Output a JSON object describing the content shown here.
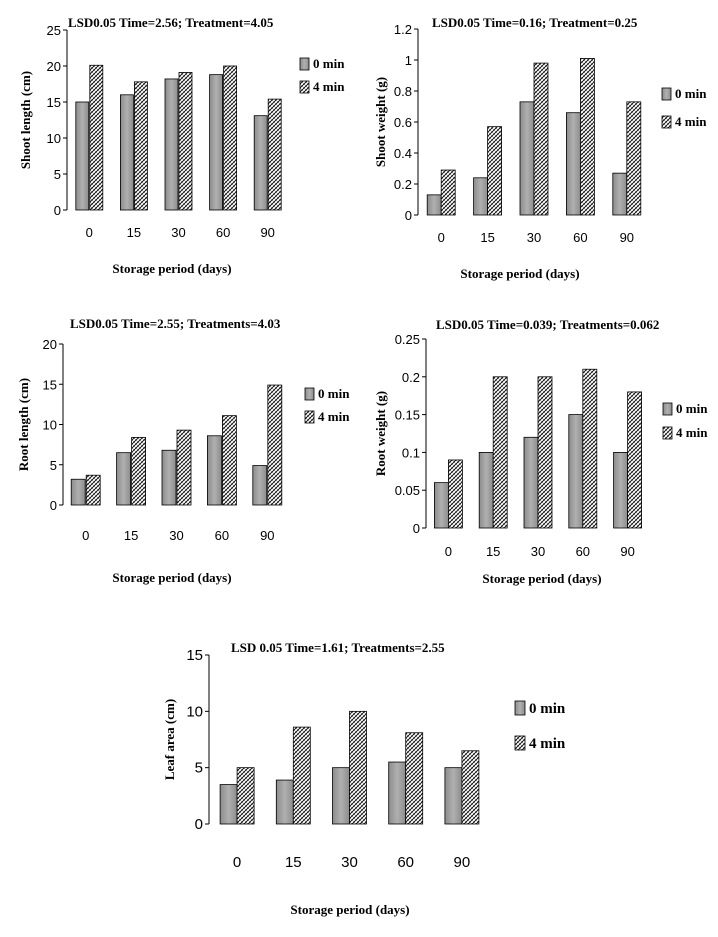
{
  "chart_data": [
    {
      "type": "bar",
      "title": "LSD0.05 Time=2.56; Treatment=4.05",
      "xlabel": "Storage period (days)",
      "ylabel": "Shoot length (cm)",
      "categories": [
        "0",
        "15",
        "30",
        "60",
        "90"
      ],
      "ylim": [
        0,
        25
      ],
      "yticks": [
        "0",
        "5",
        "10",
        "15",
        "20",
        "25"
      ],
      "series": [
        {
          "name": "0 min",
          "values": [
            15.0,
            16.0,
            18.2,
            18.8,
            13.1
          ]
        },
        {
          "name": "4 min",
          "values": [
            20.1,
            17.8,
            19.1,
            20.0,
            15.4
          ]
        }
      ],
      "legend": "right"
    },
    {
      "type": "bar",
      "title": "LSD0.05 Time=0.16; Treatment=0.25",
      "xlabel": "Storage period (days)",
      "ylabel": "Shoot weight (g)",
      "categories": [
        "0",
        "15",
        "30",
        "60",
        "90"
      ],
      "ylim": [
        0,
        1.2
      ],
      "yticks": [
        "0",
        "0.2",
        "0.4",
        "0.6",
        "0.8",
        "1",
        "1.2"
      ],
      "series": [
        {
          "name": "0 min",
          "values": [
            0.13,
            0.24,
            0.73,
            0.66,
            0.27
          ]
        },
        {
          "name": "4 min",
          "values": [
            0.29,
            0.57,
            0.98,
            1.01,
            0.73
          ]
        }
      ],
      "legend": "right"
    },
    {
      "type": "bar",
      "title": "LSD0.05 Time=2.55; Treatments=4.03",
      "xlabel": "Storage period (days)",
      "ylabel": "Root length (cm)",
      "categories": [
        "0",
        "15",
        "30",
        "60",
        "90"
      ],
      "ylim": [
        0,
        20
      ],
      "yticks": [
        "0",
        "5",
        "10",
        "15",
        "20"
      ],
      "series": [
        {
          "name": "0 min",
          "values": [
            3.2,
            6.5,
            6.8,
            8.6,
            4.9
          ]
        },
        {
          "name": "4 min",
          "values": [
            3.7,
            8.4,
            9.3,
            11.1,
            14.9
          ]
        }
      ],
      "legend": "right"
    },
    {
      "type": "bar",
      "title": "LSD0.05 Time=0.039; Treatments=0.062",
      "xlabel": "Storage period (days)",
      "ylabel": "Root weight (g)",
      "categories": [
        "0",
        "15",
        "30",
        "60",
        "90"
      ],
      "ylim": [
        0,
        0.25
      ],
      "yticks": [
        "0",
        "0.05",
        "0.1",
        "0.15",
        "0.2",
        "0.25"
      ],
      "series": [
        {
          "name": "0 min",
          "values": [
            0.06,
            0.1,
            0.12,
            0.15,
            0.1
          ]
        },
        {
          "name": "4 min",
          "values": [
            0.09,
            0.2,
            0.2,
            0.21,
            0.18
          ]
        }
      ],
      "legend": "right"
    },
    {
      "type": "bar",
      "title": "LSD 0.05 Time=1.61; Treatments=2.55",
      "xlabel": "Storage period (days)",
      "ylabel": "Leaf area (cm)",
      "categories": [
        "0",
        "15",
        "30",
        "60",
        "90"
      ],
      "ylim": [
        0,
        15
      ],
      "yticks": [
        "0",
        "5",
        "10",
        "15"
      ],
      "series": [
        {
          "name": "0 min",
          "values": [
            3.5,
            3.9,
            5.0,
            5.5,
            5.0
          ]
        },
        {
          "name": "4 min",
          "values": [
            5.0,
            8.6,
            10.0,
            8.1,
            6.5
          ]
        }
      ],
      "legend": "right"
    }
  ],
  "colors": {
    "series_0_fill": "#a0a0a0",
    "series_1_fill": "hatched-diamond-pattern",
    "axis": "#000000"
  }
}
